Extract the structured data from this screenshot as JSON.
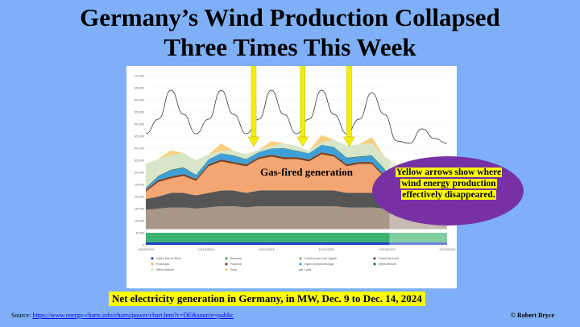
{
  "slide": {
    "title_line1": "Germany’s Wind Production Collapsed",
    "title_line2": "Three Times This Week",
    "gas_label": "Gas-fired generation",
    "callout": "Yellow arrows show where wind energy production effectively disappeared.",
    "caption": "Net electricity generation in Germany, in MW, Dec. 9 to Dec. 14, 2024",
    "source_prefix": "Source: ",
    "source_url": "https://www.energy-charts.info/charts/power/chart.htm?c=DE&source=public",
    "credit": "© Robert Bryce",
    "arrow_color": "#f2ee00",
    "callout_color": "#7731a4",
    "background_color": "#7fb0f7"
  },
  "chart_data": {
    "type": "area",
    "stacked": true,
    "unit": "MW",
    "ylim": [
      0,
      70000
    ],
    "y_ticks": [
      "70,000",
      "65,000",
      "60,000",
      "55,000",
      "50,000",
      "45,000",
      "40,000",
      "35,000",
      "30,000",
      "25,000",
      "20,000",
      "15,000",
      "10,000",
      "5,000",
      "0"
    ],
    "x_ticks": [
      "12/09/2024",
      "12/10/2024",
      "12/11/2024",
      "12/12/2024",
      "12/13/2024",
      "12/14/2024"
    ],
    "x": [
      "Dec 9 00:00",
      "Dec 9 06:00",
      "Dec 9 12:00",
      "Dec 9 18:00",
      "Dec 10 00:00",
      "Dec 10 06:00",
      "Dec 10 12:00",
      "Dec 10 18:00",
      "Dec 11 00:00",
      "Dec 11 06:00",
      "Dec 11 12:00",
      "Dec 11 18:00",
      "Dec 12 00:00",
      "Dec 12 06:00",
      "Dec 12 12:00",
      "Dec 12 18:00",
      "Dec 13 00:00",
      "Dec 13 06:00",
      "Dec 13 12:00",
      "Dec 13 18:00",
      "Dec 14 00:00",
      "Dec 14 06:00",
      "Dec 14 12:00",
      "Dec 14 18:00",
      "Dec 15 00:00"
    ],
    "series": [
      {
        "key": "hydro",
        "color": "#1c3fc7",
        "values": [
          1000,
          1000,
          1000,
          1000,
          1000,
          1000,
          1000,
          1000,
          1000,
          1000,
          1000,
          1000,
          1000,
          1000,
          1000,
          1000,
          1000,
          1000,
          1000,
          1000,
          1000,
          1000,
          1000,
          1000,
          1000
        ]
      },
      {
        "key": "biomass",
        "color": "#3cb371",
        "values": [
          4000,
          4000,
          4000,
          4000,
          4000,
          4000,
          4000,
          4000,
          4000,
          4000,
          4000,
          4000,
          4000,
          4000,
          4000,
          4000,
          4000,
          4000,
          4000,
          4000,
          4000,
          4000,
          4000,
          4000,
          4000
        ]
      },
      {
        "key": "nuclear_white",
        "color": "#ffffff",
        "values": [
          1500,
          1500,
          1500,
          1500,
          1500,
          1500,
          1500,
          1500,
          1500,
          1500,
          1500,
          1500,
          1500,
          1500,
          1500,
          1500,
          1500,
          1500,
          1500,
          1500,
          1500,
          1500,
          1500,
          1500,
          1500
        ]
      },
      {
        "key": "lignite",
        "color": "#a89688",
        "values": [
          8000,
          8500,
          9000,
          9000,
          8500,
          9000,
          9500,
          9500,
          9000,
          9500,
          9500,
          9500,
          9500,
          9500,
          9500,
          9500,
          9000,
          9000,
          9000,
          8500,
          8000,
          8000,
          8000,
          7500,
          7500
        ]
      },
      {
        "key": "hard_coal",
        "color": "#555555",
        "values": [
          4500,
          5000,
          6000,
          6000,
          5500,
          6000,
          6500,
          6500,
          6000,
          6500,
          6500,
          6500,
          6500,
          6500,
          6500,
          6500,
          6000,
          6000,
          6000,
          5000,
          3000,
          2500,
          2500,
          2500,
          2500
        ]
      },
      {
        "key": "gas",
        "color": "#f4a672",
        "values": [
          3000,
          6000,
          6000,
          7000,
          6000,
          11000,
          12000,
          11000,
          11000,
          13000,
          14000,
          13000,
          13000,
          12000,
          15000,
          14000,
          11000,
          12000,
          12000,
          8000,
          4000,
          3000,
          3000,
          3000,
          3000
        ]
      },
      {
        "key": "oil_other",
        "color": "#7a3f20",
        "values": [
          800,
          800,
          800,
          800,
          800,
          800,
          800,
          800,
          800,
          800,
          800,
          800,
          800,
          800,
          800,
          800,
          800,
          800,
          800,
          800,
          800,
          800,
          800,
          800,
          800
        ]
      },
      {
        "key": "pumped_storage",
        "color": "#3ea0d8",
        "values": [
          500,
          1500,
          2500,
          2500,
          1500,
          2000,
          2500,
          2500,
          2000,
          2000,
          2500,
          3500,
          2500,
          2500,
          3000,
          3000,
          2500,
          2000,
          2500,
          2500,
          1500,
          1500,
          1500,
          1000,
          1000
        ]
      },
      {
        "key": "wind_offshore",
        "color": "#1e6f5a",
        "values": [
          300,
          300,
          300,
          300,
          200,
          100,
          100,
          200,
          200,
          100,
          100,
          200,
          200,
          100,
          100,
          200,
          300,
          300,
          300,
          300,
          400,
          400,
          400,
          400,
          400
        ]
      },
      {
        "key": "wind_onshore",
        "color": "#d7e6c9",
        "values": [
          10000,
          7000,
          6000,
          6000,
          6000,
          2000,
          1000,
          2000,
          2000,
          1000,
          1000,
          2000,
          2000,
          1000,
          1000,
          3000,
          5000,
          5000,
          5000,
          5000,
          9000,
          9000,
          9000,
          9000,
          9000
        ]
      },
      {
        "key": "solar",
        "color": "#f7cf7f",
        "values": [
          0,
          0,
          2000,
          0,
          0,
          0,
          3000,
          0,
          0,
          0,
          2000,
          0,
          0,
          0,
          3000,
          0,
          0,
          0,
          2500,
          0,
          0,
          0,
          1000,
          0,
          0
        ]
      }
    ],
    "load": [
      46000,
      52000,
      64000,
      54000,
      46000,
      52000,
      64000,
      54000,
      46000,
      52000,
      64000,
      54000,
      46000,
      52000,
      64000,
      54000,
      46000,
      52000,
      63000,
      54000,
      43000,
      42000,
      48000,
      44000,
      42000
    ],
    "legend": [
      {
        "label": "Hydro Run-of-River",
        "color": "#1c3fc7"
      },
      {
        "label": "Biomass",
        "color": "#3cb371"
      },
      {
        "label": "Fossil brown coal / lignite",
        "color": "#a89688"
      },
      {
        "label": "Fossil hard coal",
        "color": "#555555"
      },
      {
        "label": "Fossil gas",
        "color": "#f4a672"
      },
      {
        "label": "Fossil oil",
        "color": "#7a3f20"
      },
      {
        "label": "Hydro pumped storage",
        "color": "#3ea0d8"
      },
      {
        "label": "Wind offshore",
        "color": "#1e6f5a"
      },
      {
        "label": "Wind onshore",
        "color": "#d7e6c9"
      },
      {
        "label": "Solar",
        "color": "#f7cf7f"
      },
      {
        "label": "Load",
        "color": "#222222"
      }
    ],
    "arrows_at": [
      8.6,
      12.5,
      16.2
    ]
  }
}
